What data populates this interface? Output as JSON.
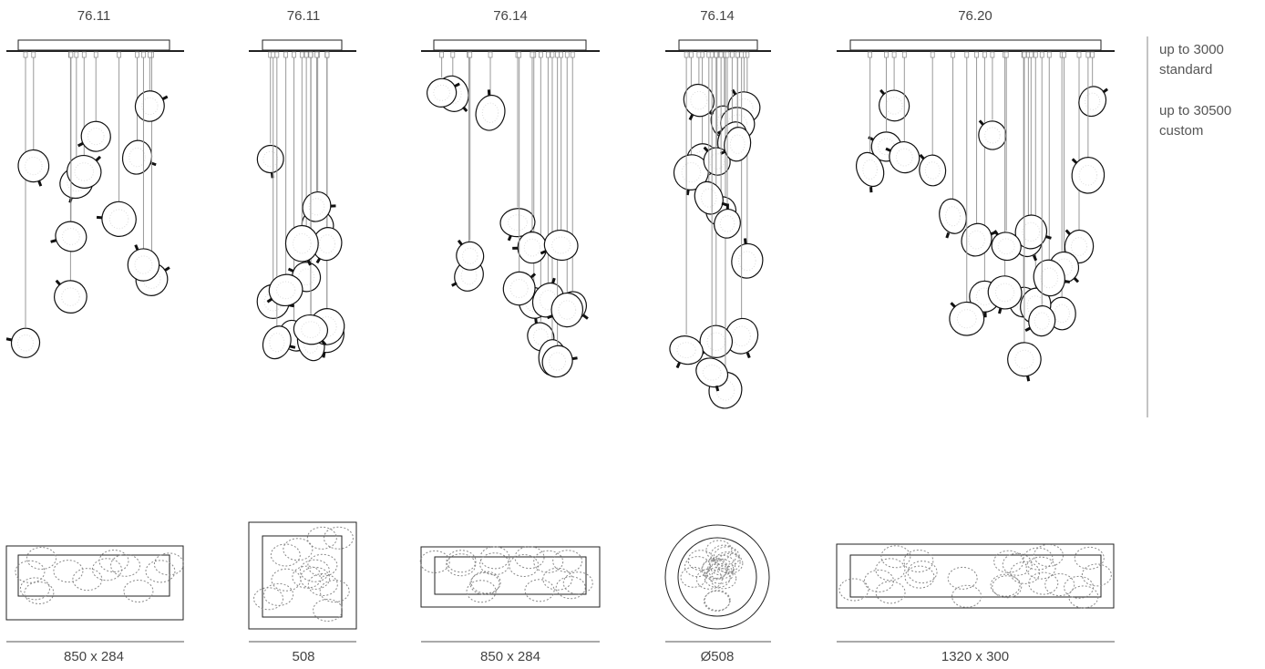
{
  "columns": [
    {
      "model": "76.11",
      "dimension": "850 x 284"
    },
    {
      "model": "76.11",
      "dimension": "508"
    },
    {
      "model": "76.14",
      "dimension": "850 x 284"
    },
    {
      "model": "76.14",
      "dimension": "Ø508"
    },
    {
      "model": "76.20",
      "dimension": "1320 x 300"
    }
  ],
  "notes": [
    {
      "length": "up to 3000",
      "kind": "standard"
    },
    {
      "length": "up to 30500",
      "kind": "custom"
    }
  ]
}
